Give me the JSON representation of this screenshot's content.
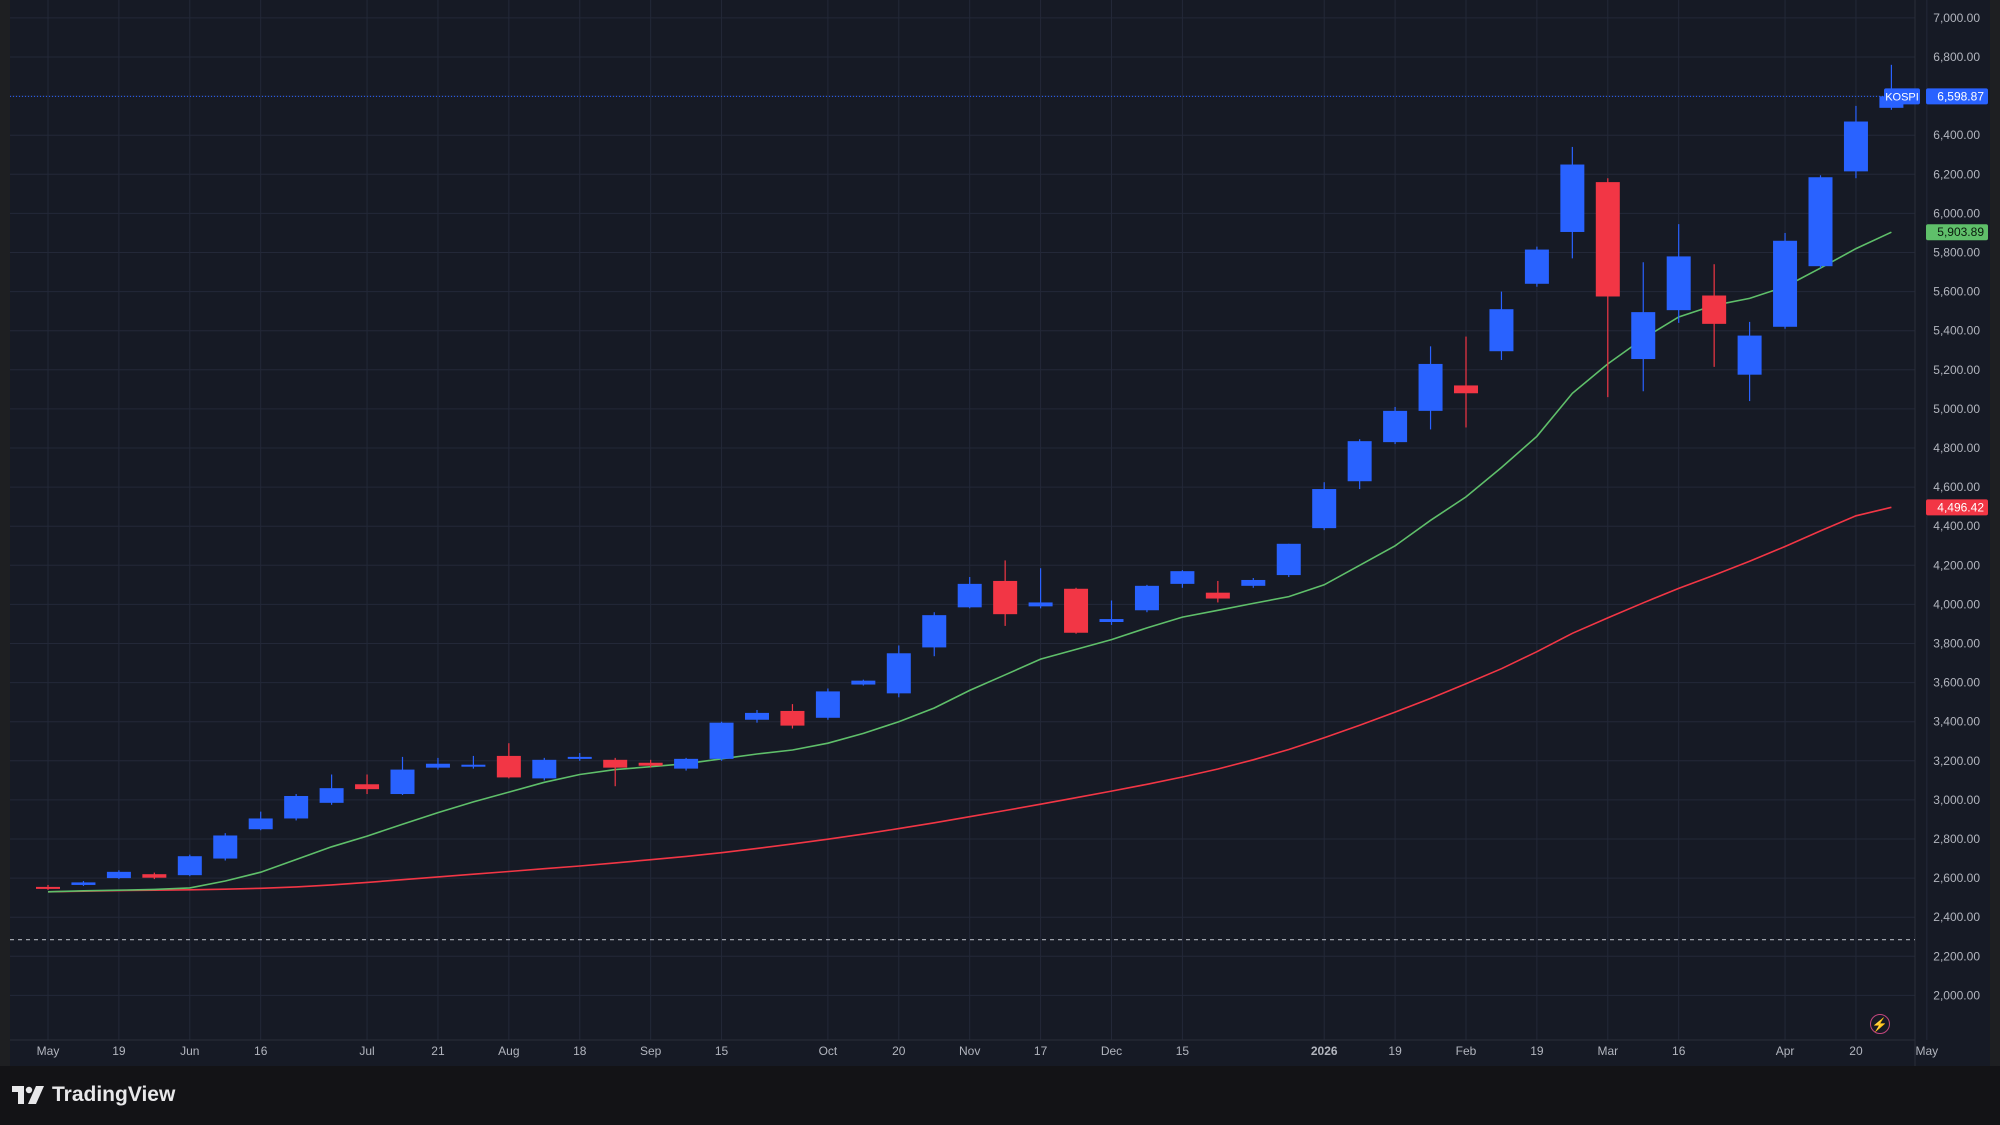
{
  "app": {
    "brand": "TradingView"
  },
  "symbol": "KOSPI",
  "last_price_label": "6,598.87",
  "ma_fast_label": "5,903.89",
  "ma_slow_label": "4,496.42",
  "colors": {
    "background": "#161a25",
    "grid": "#232838",
    "up": "#2962ff",
    "down": "#f23645",
    "ma_fast": "#5fbf6a",
    "ma_slow": "#f23645",
    "axis_text": "#b2b5be",
    "price_line": "#2962ff"
  },
  "chart_data": {
    "type": "candlestick",
    "interval": "weekly",
    "y_axis": {
      "ylim": [
        1800,
        7100
      ],
      "ticks": [
        "2,000.00",
        "2,200.00",
        "2,400.00",
        "2,600.00",
        "2,800.00",
        "3,000.00",
        "3,200.00",
        "3,400.00",
        "3,600.00",
        "3,800.00",
        "4,000.00",
        "4,200.00",
        "4,400.00",
        "4,600.00",
        "4,800.00",
        "5,000.00",
        "5,200.00",
        "5,400.00",
        "5,600.00",
        "5,800.00",
        "6,000.00",
        "6,200.00",
        "6,400.00",
        "6,600.00",
        "6,800.00",
        "7,000.00"
      ]
    },
    "x_axis": {
      "labels": [
        {
          "label": "May",
          "week": 0
        },
        {
          "label": "19",
          "week": 2
        },
        {
          "label": "Jun",
          "week": 4
        },
        {
          "label": "16",
          "week": 6
        },
        {
          "label": "Jul",
          "week": 9
        },
        {
          "label": "21",
          "week": 11
        },
        {
          "label": "Aug",
          "week": 13
        },
        {
          "label": "18",
          "week": 15
        },
        {
          "label": "Sep",
          "week": 17
        },
        {
          "label": "15",
          "week": 19
        },
        {
          "label": "Oct",
          "week": 22
        },
        {
          "label": "20",
          "week": 24
        },
        {
          "label": "Nov",
          "week": 26
        },
        {
          "label": "17",
          "week": 28
        },
        {
          "label": "Dec",
          "week": 30
        },
        {
          "label": "15",
          "week": 32
        },
        {
          "label": "2026",
          "week": 36
        },
        {
          "label": "19",
          "week": 38
        },
        {
          "label": "Feb",
          "week": 40
        },
        {
          "label": "19",
          "week": 42
        },
        {
          "label": "Mar",
          "week": 44
        },
        {
          "label": "16",
          "week": 46
        },
        {
          "label": "Apr",
          "week": 49
        },
        {
          "label": "20",
          "week": 51
        },
        {
          "label": "May",
          "week": 53
        }
      ]
    },
    "candles": [
      {
        "o": 2555,
        "h": 2565,
        "l": 2540,
        "c": 2545
      },
      {
        "o": 2565,
        "h": 2585,
        "l": 2560,
        "c": 2578
      },
      {
        "o": 2600,
        "h": 2640,
        "l": 2595,
        "c": 2632
      },
      {
        "o": 2620,
        "h": 2628,
        "l": 2595,
        "c": 2602
      },
      {
        "o": 2615,
        "h": 2720,
        "l": 2610,
        "c": 2712
      },
      {
        "o": 2700,
        "h": 2830,
        "l": 2690,
        "c": 2818
      },
      {
        "o": 2850,
        "h": 2940,
        "l": 2845,
        "c": 2905
      },
      {
        "o": 2905,
        "h": 3030,
        "l": 2895,
        "c": 3020
      },
      {
        "o": 2985,
        "h": 3130,
        "l": 2975,
        "c": 3060
      },
      {
        "o": 3080,
        "h": 3130,
        "l": 3030,
        "c": 3055
      },
      {
        "o": 3030,
        "h": 3220,
        "l": 3025,
        "c": 3155
      },
      {
        "o": 3165,
        "h": 3215,
        "l": 3155,
        "c": 3185
      },
      {
        "o": 3180,
        "h": 3225,
        "l": 3160,
        "c": 3180
      },
      {
        "o": 3225,
        "h": 3290,
        "l": 3110,
        "c": 3115
      },
      {
        "o": 3110,
        "h": 3215,
        "l": 3100,
        "c": 3205
      },
      {
        "o": 3220,
        "h": 3240,
        "l": 3200,
        "c": 3220
      },
      {
        "o": 3205,
        "h": 3215,
        "l": 3070,
        "c": 3165
      },
      {
        "o": 3190,
        "h": 3205,
        "l": 3165,
        "c": 3175
      },
      {
        "o": 3160,
        "h": 3215,
        "l": 3150,
        "c": 3210
      },
      {
        "o": 3210,
        "h": 3400,
        "l": 3200,
        "c": 3395
      },
      {
        "o": 3410,
        "h": 3460,
        "l": 3395,
        "c": 3445
      },
      {
        "o": 3455,
        "h": 3490,
        "l": 3365,
        "c": 3380
      },
      {
        "o": 3420,
        "h": 3570,
        "l": 3410,
        "c": 3555
      },
      {
        "o": 3590,
        "h": 3615,
        "l": 3585,
        "c": 3610
      },
      {
        "o": 3545,
        "h": 3790,
        "l": 3525,
        "c": 3750
      },
      {
        "o": 3780,
        "h": 3960,
        "l": 3735,
        "c": 3945
      },
      {
        "o": 3985,
        "h": 4140,
        "l": 3980,
        "c": 4105
      },
      {
        "o": 4120,
        "h": 4225,
        "l": 3890,
        "c": 3950
      },
      {
        "o": 3990,
        "h": 4185,
        "l": 3980,
        "c": 4010
      },
      {
        "o": 4080,
        "h": 4085,
        "l": 3850,
        "c": 3855
      },
      {
        "o": 3910,
        "h": 4020,
        "l": 3895,
        "c": 3925
      },
      {
        "o": 3970,
        "h": 4100,
        "l": 3960,
        "c": 4095
      },
      {
        "o": 4105,
        "h": 4175,
        "l": 4085,
        "c": 4170
      },
      {
        "o": 4060,
        "h": 4120,
        "l": 4010,
        "c": 4030
      },
      {
        "o": 4095,
        "h": 4135,
        "l": 4085,
        "c": 4125
      },
      {
        "o": 4150,
        "h": 4310,
        "l": 4140,
        "c": 4310
      },
      {
        "o": 4390,
        "h": 4625,
        "l": 4380,
        "c": 4590
      },
      {
        "o": 4630,
        "h": 4845,
        "l": 4590,
        "c": 4835
      },
      {
        "o": 4830,
        "h": 5010,
        "l": 4820,
        "c": 4990
      },
      {
        "o": 4990,
        "h": 5320,
        "l": 4895,
        "c": 5230
      },
      {
        "o": 5120,
        "h": 5370,
        "l": 4905,
        "c": 5080
      },
      {
        "o": 5295,
        "h": 5600,
        "l": 5250,
        "c": 5510
      },
      {
        "o": 5640,
        "h": 5830,
        "l": 5625,
        "c": 5815
      },
      {
        "o": 5905,
        "h": 6340,
        "l": 5770,
        "c": 6250
      },
      {
        "o": 6160,
        "h": 6180,
        "l": 5060,
        "c": 5575
      },
      {
        "o": 5255,
        "h": 5750,
        "l": 5090,
        "c": 5495
      },
      {
        "o": 5505,
        "h": 5945,
        "l": 5440,
        "c": 5780
      },
      {
        "o": 5580,
        "h": 5740,
        "l": 5215,
        "c": 5435
      },
      {
        "o": 5175,
        "h": 5445,
        "l": 5040,
        "c": 5375
      },
      {
        "o": 5420,
        "h": 5900,
        "l": 5410,
        "c": 5860
      },
      {
        "o": 5730,
        "h": 6195,
        "l": 5720,
        "c": 6185
      },
      {
        "o": 6215,
        "h": 6550,
        "l": 6180,
        "c": 6470
      },
      {
        "o": 6540,
        "h": 6760,
        "l": 6530,
        "c": 6598.87
      }
    ],
    "ma_fast": [
      2530,
      2535,
      2538,
      2542,
      2550,
      2585,
      2630,
      2695,
      2760,
      2815,
      2875,
      2935,
      2990,
      3040,
      3090,
      3130,
      3155,
      3170,
      3185,
      3210,
      3235,
      3255,
      3290,
      3340,
      3400,
      3470,
      3560,
      3640,
      3720,
      3770,
      3820,
      3880,
      3935,
      3970,
      4005,
      4040,
      4100,
      4200,
      4300,
      4430,
      4550,
      4700,
      4860,
      5080,
      5230,
      5360,
      5470,
      5530,
      5565,
      5625,
      5720,
      5820,
      5903.89
    ],
    "ma_slow": [
      2530,
      2533,
      2536,
      2538,
      2540,
      2543,
      2548,
      2555,
      2565,
      2578,
      2592,
      2606,
      2620,
      2634,
      2648,
      2662,
      2678,
      2694,
      2711,
      2730,
      2752,
      2775,
      2799,
      2825,
      2853,
      2883,
      2914,
      2946,
      2978,
      3011,
      3045,
      3080,
      3117,
      3158,
      3205,
      3258,
      3318,
      3382,
      3449,
      3519,
      3594,
      3671,
      3758,
      3852,
      3931,
      4008,
      4082,
      4150,
      4221,
      4296,
      4376,
      4453,
      4496.42
    ],
    "reference_line": 2285,
    "last_price": 6598.87
  }
}
